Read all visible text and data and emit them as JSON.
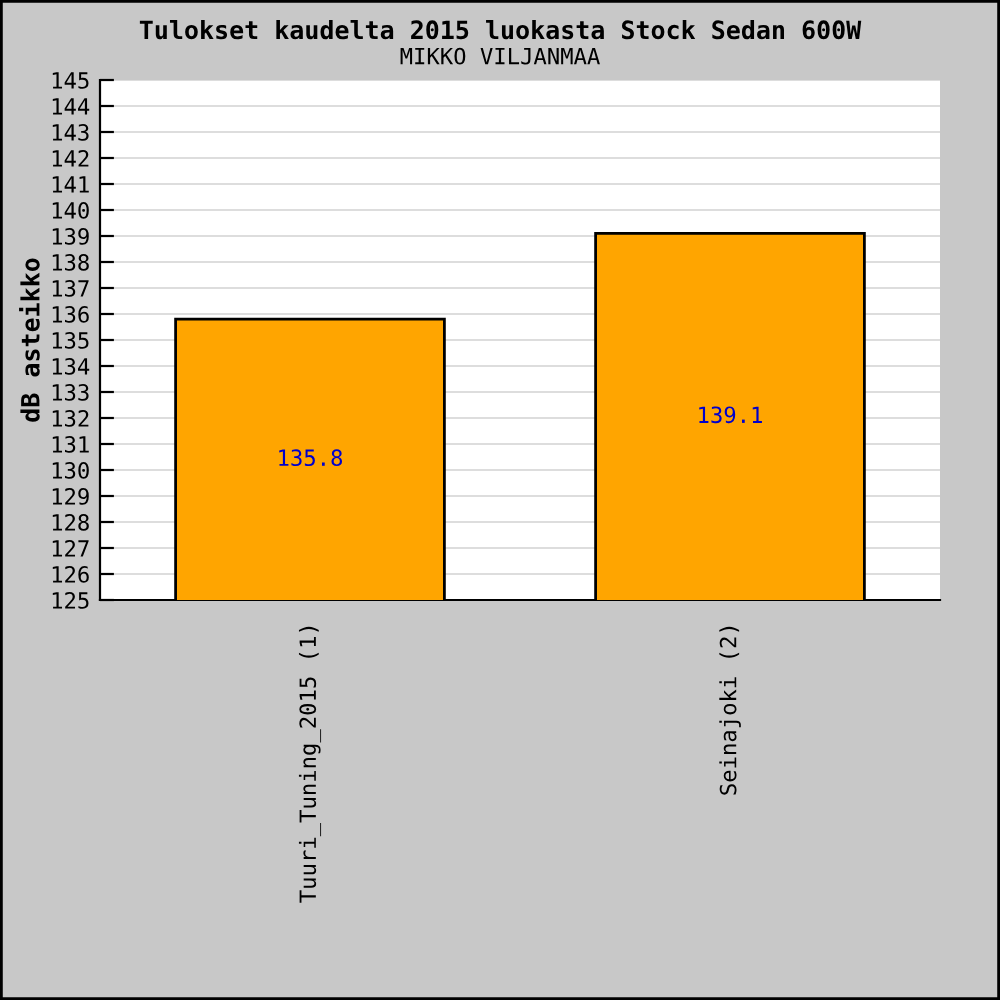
{
  "chart_data": {
    "type": "bar",
    "title": "Tulokset kaudelta 2015 luokasta Stock Sedan 600W",
    "subtitle": "MIKKO VILJANMAA",
    "ylabel": "dB asteikko",
    "categories": [
      "Tuuri_Tuning_2015 (1)",
      "Seinajoki (2)"
    ],
    "values": [
      135.8,
      139.1
    ],
    "color": "#ffa500",
    "data_labels": true,
    "ylim": [
      125,
      145
    ],
    "yticks": [
      125,
      126,
      127,
      128,
      129,
      130,
      131,
      132,
      133,
      134,
      135,
      136,
      137,
      138,
      139,
      140,
      141,
      142,
      143,
      144,
      145
    ],
    "grid": "y"
  }
}
